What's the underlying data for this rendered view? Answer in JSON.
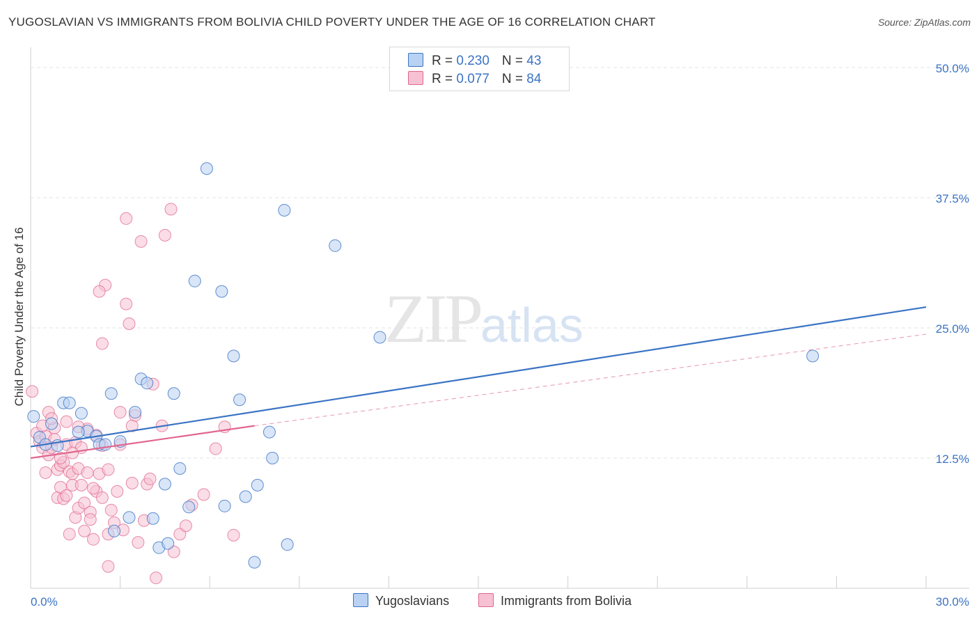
{
  "title": "YUGOSLAVIAN VS IMMIGRANTS FROM BOLIVIA CHILD POVERTY UNDER THE AGE OF 16 CORRELATION CHART",
  "source": "Source: ZipAtlas.com",
  "watermark": {
    "zip": "ZIP",
    "atlas": "atlas"
  },
  "legend": {
    "rows": [
      {
        "r_label": "R = ",
        "r_value": "0.230",
        "n_label": "N = ",
        "n_value": "43"
      },
      {
        "r_label": "R = ",
        "r_value": "0.077",
        "n_label": "N = ",
        "n_value": "84"
      }
    ]
  },
  "bottom_legend": [
    "Yugoslavians",
    "Immigrants from Bolivia"
  ],
  "chart_data": {
    "type": "scatter",
    "title": "YUGOSLAVIAN VS IMMIGRANTS FROM BOLIVIA CHILD POVERTY UNDER THE AGE OF 16 CORRELATION CHART",
    "xlabel": "",
    "ylabel": "Child Poverty Under the Age of 16",
    "xlim": [
      0,
      30
    ],
    "ylim": [
      0,
      50
    ],
    "x_tick_labels": [
      "0.0%",
      "30.0%"
    ],
    "y_tick_labels": [
      "12.5%",
      "25.0%",
      "37.5%",
      "50.0%"
    ],
    "y_ticks": [
      12.5,
      25,
      37.5,
      50
    ],
    "grid": true,
    "colors": {
      "blue": "#3a73c4",
      "blue_fill": "#b9d2f3",
      "pink": "#e0678f",
      "pink_fill": "#f6c1d2",
      "tick_blue": "#3a73c4"
    },
    "series": [
      {
        "name": "Yugoslavians",
        "color": "#3a73c4",
        "trend": {
          "x": [
            0,
            30
          ],
          "y": [
            13.6,
            27.0
          ],
          "style": "solid"
        },
        "points": [
          [
            0.1,
            16.5
          ],
          [
            0.3,
            14.5
          ],
          [
            0.5,
            13.8
          ],
          [
            0.7,
            15.8
          ],
          [
            0.9,
            13.7
          ],
          [
            1.1,
            17.8
          ],
          [
            1.3,
            17.8
          ],
          [
            1.7,
            16.8
          ],
          [
            1.9,
            15.1
          ],
          [
            2.2,
            14.6
          ],
          [
            2.3,
            13.8
          ],
          [
            2.5,
            13.8
          ],
          [
            2.7,
            18.7
          ],
          [
            3.0,
            14.1
          ],
          [
            3.3,
            6.8
          ],
          [
            3.5,
            16.9
          ],
          [
            3.7,
            20.1
          ],
          [
            3.9,
            19.7
          ],
          [
            4.1,
            6.7
          ],
          [
            4.3,
            3.9
          ],
          [
            4.5,
            10.0
          ],
          [
            4.6,
            4.3
          ],
          [
            4.8,
            18.7
          ],
          [
            5.0,
            11.5
          ],
          [
            5.3,
            7.8
          ],
          [
            5.5,
            29.5
          ],
          [
            5.9,
            40.3
          ],
          [
            6.4,
            28.5
          ],
          [
            6.5,
            7.9
          ],
          [
            6.8,
            22.3
          ],
          [
            7.0,
            18.1
          ],
          [
            7.2,
            8.8
          ],
          [
            7.5,
            2.5
          ],
          [
            7.6,
            9.9
          ],
          [
            8.0,
            15.0
          ],
          [
            8.1,
            12.5
          ],
          [
            8.5,
            36.3
          ],
          [
            8.6,
            4.2
          ],
          [
            10.2,
            32.9
          ],
          [
            11.7,
            24.1
          ],
          [
            26.2,
            22.3
          ],
          [
            2.8,
            5.5
          ],
          [
            1.6,
            15.0
          ]
        ]
      },
      {
        "name": "Immigrants from Bolivia",
        "color": "#e0678f",
        "trend": {
          "x": [
            0,
            7.5
          ],
          "y": [
            12.5,
            15.6
          ],
          "style": "solid",
          "extension": {
            "x": [
              7.5,
              30
            ],
            "y": [
              15.6,
              24.4
            ],
            "style": "dashed"
          }
        },
        "points": [
          [
            0.05,
            18.9
          ],
          [
            0.2,
            14.9
          ],
          [
            0.3,
            14.1
          ],
          [
            0.4,
            13.5
          ],
          [
            0.5,
            11.1
          ],
          [
            0.5,
            14.6
          ],
          [
            0.6,
            12.8
          ],
          [
            0.6,
            16.9
          ],
          [
            0.7,
            13.5
          ],
          [
            0.8,
            15.4
          ],
          [
            0.9,
            11.4
          ],
          [
            0.9,
            8.7
          ],
          [
            1.0,
            9.7
          ],
          [
            1.0,
            11.8
          ],
          [
            1.1,
            8.6
          ],
          [
            1.1,
            12.1
          ],
          [
            1.2,
            13.8
          ],
          [
            1.2,
            8.9
          ],
          [
            1.3,
            11.2
          ],
          [
            1.3,
            5.2
          ],
          [
            1.4,
            11.0
          ],
          [
            1.4,
            9.9
          ],
          [
            1.5,
            6.8
          ],
          [
            1.5,
            14.0
          ],
          [
            1.6,
            11.5
          ],
          [
            1.6,
            7.7
          ],
          [
            1.7,
            13.5
          ],
          [
            1.7,
            9.9
          ],
          [
            1.8,
            8.2
          ],
          [
            1.8,
            5.5
          ],
          [
            1.9,
            15.3
          ],
          [
            1.9,
            11.1
          ],
          [
            2.0,
            7.3
          ],
          [
            2.0,
            6.6
          ],
          [
            2.1,
            4.7
          ],
          [
            2.2,
            9.3
          ],
          [
            2.2,
            14.7
          ],
          [
            2.3,
            11.0
          ],
          [
            2.4,
            13.7
          ],
          [
            2.4,
            8.7
          ],
          [
            2.5,
            29.1
          ],
          [
            2.6,
            11.4
          ],
          [
            2.6,
            2.1
          ],
          [
            2.7,
            7.5
          ],
          [
            2.8,
            6.3
          ],
          [
            2.9,
            9.3
          ],
          [
            3.0,
            13.8
          ],
          [
            3.1,
            5.6
          ],
          [
            3.2,
            27.3
          ],
          [
            3.2,
            35.5
          ],
          [
            3.3,
            25.4
          ],
          [
            3.4,
            15.6
          ],
          [
            3.5,
            16.6
          ],
          [
            3.6,
            4.4
          ],
          [
            3.7,
            33.3
          ],
          [
            3.8,
            6.5
          ],
          [
            3.9,
            10.0
          ],
          [
            4.0,
            10.5
          ],
          [
            4.1,
            19.6
          ],
          [
            4.2,
            1.0
          ],
          [
            4.4,
            15.6
          ],
          [
            4.5,
            33.9
          ],
          [
            4.7,
            36.4
          ],
          [
            4.8,
            3.5
          ],
          [
            5.0,
            5.2
          ],
          [
            5.2,
            6.0
          ],
          [
            5.4,
            8.0
          ],
          [
            5.8,
            9.0
          ],
          [
            6.2,
            13.4
          ],
          [
            6.5,
            15.5
          ],
          [
            6.8,
            5.1
          ],
          [
            2.3,
            28.5
          ],
          [
            2.4,
            23.5
          ],
          [
            1.2,
            16.0
          ],
          [
            0.8,
            14.3
          ],
          [
            1.0,
            12.5
          ],
          [
            1.6,
            15.5
          ],
          [
            2.6,
            5.2
          ],
          [
            3.0,
            16.9
          ],
          [
            1.4,
            13.0
          ],
          [
            0.4,
            15.6
          ],
          [
            2.1,
            9.6
          ],
          [
            3.4,
            10.1
          ],
          [
            0.7,
            16.3
          ]
        ]
      }
    ]
  }
}
